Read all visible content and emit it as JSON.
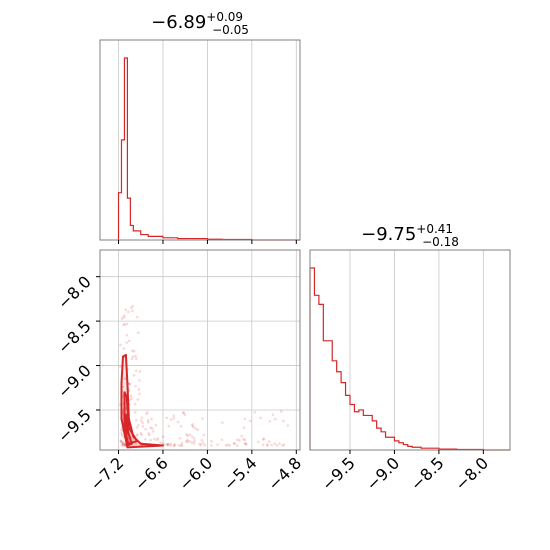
{
  "chart_data": [
    {
      "type": "histogram",
      "panel": "top-left",
      "title": {
        "median": "−6.89",
        "plus": "+0.09",
        "minus": "−0.05"
      },
      "xlim": [
        -7.45,
        -4.75
      ],
      "ylim": [
        0,
        1
      ],
      "grid": true,
      "color": "#d62728",
      "bins": [
        [
          -7.2,
          -7.16,
          0.26
        ],
        [
          -7.16,
          -7.12,
          0.55
        ],
        [
          -7.12,
          -7.08,
          1.0
        ],
        [
          -7.08,
          -7.04,
          0.23
        ],
        [
          -7.04,
          -7.0,
          0.08
        ],
        [
          -7.0,
          -6.9,
          0.05
        ],
        [
          -6.9,
          -6.8,
          0.03
        ],
        [
          -6.8,
          -6.6,
          0.02
        ],
        [
          -6.6,
          -6.4,
          0.012
        ],
        [
          -6.4,
          -6.0,
          0.008
        ],
        [
          -6.0,
          -5.8,
          0.004
        ],
        [
          -5.8,
          -5.4,
          0.003
        ],
        [
          -5.4,
          -4.75,
          0.0
        ]
      ]
    },
    {
      "type": "scatter",
      "panel": "bottom-left",
      "xlim": [
        -7.45,
        -4.75
      ],
      "ylim": [
        -9.95,
        -7.7
      ],
      "xticks": [
        "−7.2",
        "−6.6",
        "−6.0",
        "−5.4",
        "−4.8"
      ],
      "xtick_values": [
        -7.2,
        -6.6,
        -6.0,
        -5.4,
        -4.8
      ],
      "yticks": [
        "−8.0",
        "−8.5",
        "−9.0",
        "−9.5"
      ],
      "ytick_values": [
        -8.0,
        -8.5,
        -9.0,
        -9.5
      ],
      "grid": true,
      "color": "#d62728",
      "contours": [
        [
          [
            -7.14,
            -8.9
          ],
          [
            -7.1,
            -8.88
          ],
          [
            -7.08,
            -9.2
          ],
          [
            -7.06,
            -9.6
          ],
          [
            -7.0,
            -9.8
          ],
          [
            -6.9,
            -9.88
          ],
          [
            -6.6,
            -9.9
          ],
          [
            -7.08,
            -9.92
          ],
          [
            -7.16,
            -9.6
          ],
          [
            -7.16,
            -9.2
          ]
        ],
        [
          [
            -7.12,
            -9.3
          ],
          [
            -7.09,
            -9.35
          ],
          [
            -7.06,
            -9.7
          ],
          [
            -6.95,
            -9.85
          ],
          [
            -7.07,
            -9.88
          ],
          [
            -7.12,
            -9.7
          ]
        ],
        [
          [
            -7.1,
            -9.55
          ],
          [
            -7.07,
            -9.75
          ],
          [
            -7.02,
            -9.88
          ],
          [
            -7.09,
            -9.9
          ]
        ]
      ]
    },
    {
      "type": "histogram",
      "panel": "bottom-right",
      "title": {
        "median": "−9.75",
        "plus": "+0.41",
        "minus": "−0.18"
      },
      "xlim": [
        -9.95,
        -7.7
      ],
      "ylim": [
        0,
        1
      ],
      "xticks": [
        "−9.5",
        "−9.0",
        "−8.5",
        "−8.0"
      ],
      "xtick_values": [
        -9.5,
        -9.0,
        -8.5,
        -8.0
      ],
      "grid": true,
      "color": "#d62728",
      "bins": [
        [
          -9.95,
          -9.9,
          1.0
        ],
        [
          -9.9,
          -9.85,
          0.85
        ],
        [
          -9.85,
          -9.8,
          0.8
        ],
        [
          -9.8,
          -9.75,
          0.6
        ],
        [
          -9.75,
          -9.7,
          0.6
        ],
        [
          -9.7,
          -9.65,
          0.49
        ],
        [
          -9.65,
          -9.6,
          0.43
        ],
        [
          -9.6,
          -9.55,
          0.37
        ],
        [
          -9.55,
          -9.5,
          0.3
        ],
        [
          -9.5,
          -9.45,
          0.25
        ],
        [
          -9.45,
          -9.4,
          0.21
        ],
        [
          -9.4,
          -9.35,
          0.22
        ],
        [
          -9.35,
          -9.3,
          0.19
        ],
        [
          -9.3,
          -9.25,
          0.19
        ],
        [
          -9.25,
          -9.2,
          0.16
        ],
        [
          -9.2,
          -9.15,
          0.12
        ],
        [
          -9.15,
          -9.1,
          0.1
        ],
        [
          -9.1,
          -9.05,
          0.07
        ],
        [
          -9.05,
          -9.0,
          0.07
        ],
        [
          -9.0,
          -8.95,
          0.05
        ],
        [
          -8.95,
          -8.9,
          0.04
        ],
        [
          -8.9,
          -8.85,
          0.03
        ],
        [
          -8.85,
          -8.8,
          0.02
        ],
        [
          -8.8,
          -8.7,
          0.015
        ],
        [
          -8.7,
          -8.5,
          0.01
        ],
        [
          -8.5,
          -8.3,
          0.005
        ],
        [
          -8.3,
          -8.0,
          0.003
        ],
        [
          -8.0,
          -7.7,
          0.0
        ]
      ]
    }
  ]
}
